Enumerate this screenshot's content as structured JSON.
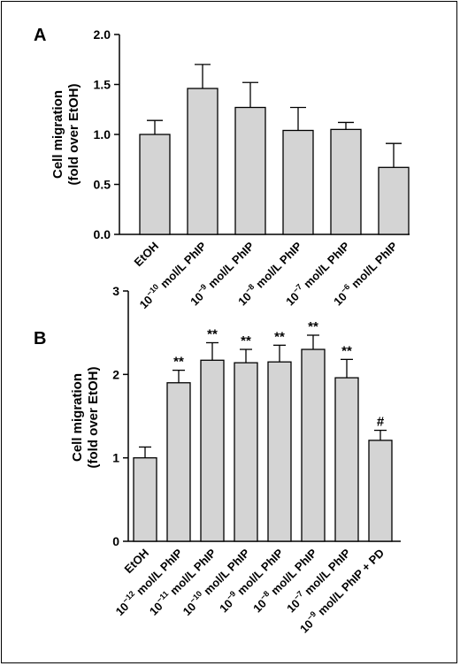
{
  "chart_data": [
    {
      "panel_label": "A",
      "type": "bar",
      "ylabel_line1": "Cell migration",
      "ylabel_line2": "(fold over EtOH)",
      "ylim": [
        0,
        2.0
      ],
      "yticks": [
        "0.0",
        "0.5",
        "1.0",
        "1.5",
        "2.0"
      ],
      "categories": [
        {
          "exp": "",
          "pre": "EtOH",
          "post": ""
        },
        {
          "pre": "10",
          "exp": "−10",
          "post": " mol/L PhIP"
        },
        {
          "pre": "10",
          "exp": "−9",
          "post": " mol/L PhIP"
        },
        {
          "pre": "10",
          "exp": "−8",
          "post": " mol/L PhIP"
        },
        {
          "pre": "10",
          "exp": "−7",
          "post": " mol/L PhIP"
        },
        {
          "pre": "10",
          "exp": "−6",
          "post": " mol/L PhIP"
        }
      ],
      "values": [
        1.0,
        1.46,
        1.27,
        1.04,
        1.05,
        0.67
      ],
      "errors": [
        0.14,
        0.24,
        0.25,
        0.23,
        0.07,
        0.24
      ],
      "significance": [
        "",
        "",
        "",
        "",
        "",
        ""
      ],
      "bar_color": "#d4d4d4"
    },
    {
      "panel_label": "B",
      "type": "bar",
      "ylabel_line1": "Cell migration",
      "ylabel_line2": "(fold over EtOH)",
      "ylim": [
        0,
        3
      ],
      "yticks": [
        "0",
        "1",
        "2",
        "3"
      ],
      "categories": [
        {
          "exp": "",
          "pre": "EtOH",
          "post": ""
        },
        {
          "pre": "10",
          "exp": "−12",
          "post": " mol/L PhIP"
        },
        {
          "pre": "10",
          "exp": "−11",
          "post": " mol/L PhIP"
        },
        {
          "pre": "10",
          "exp": "−10",
          "post": " mol/L PhIP"
        },
        {
          "pre": "10",
          "exp": "−9",
          "post": " mol/L PhIP"
        },
        {
          "pre": "10",
          "exp": "−8",
          "post": " mol/L PhIP"
        },
        {
          "pre": "10",
          "exp": "−7",
          "post": " mol/L PhIP"
        },
        {
          "pre": "10",
          "exp": "−9",
          "post": " mol/L PhIP + PD"
        }
      ],
      "values": [
        1.0,
        1.9,
        2.17,
        2.14,
        2.15,
        2.3,
        1.96,
        1.21
      ],
      "errors": [
        0.13,
        0.15,
        0.21,
        0.16,
        0.2,
        0.17,
        0.22,
        0.12
      ],
      "significance": [
        "",
        "**",
        "**",
        "**",
        "**",
        "**",
        "**",
        "#"
      ],
      "bar_color": "#d4d4d4"
    }
  ]
}
